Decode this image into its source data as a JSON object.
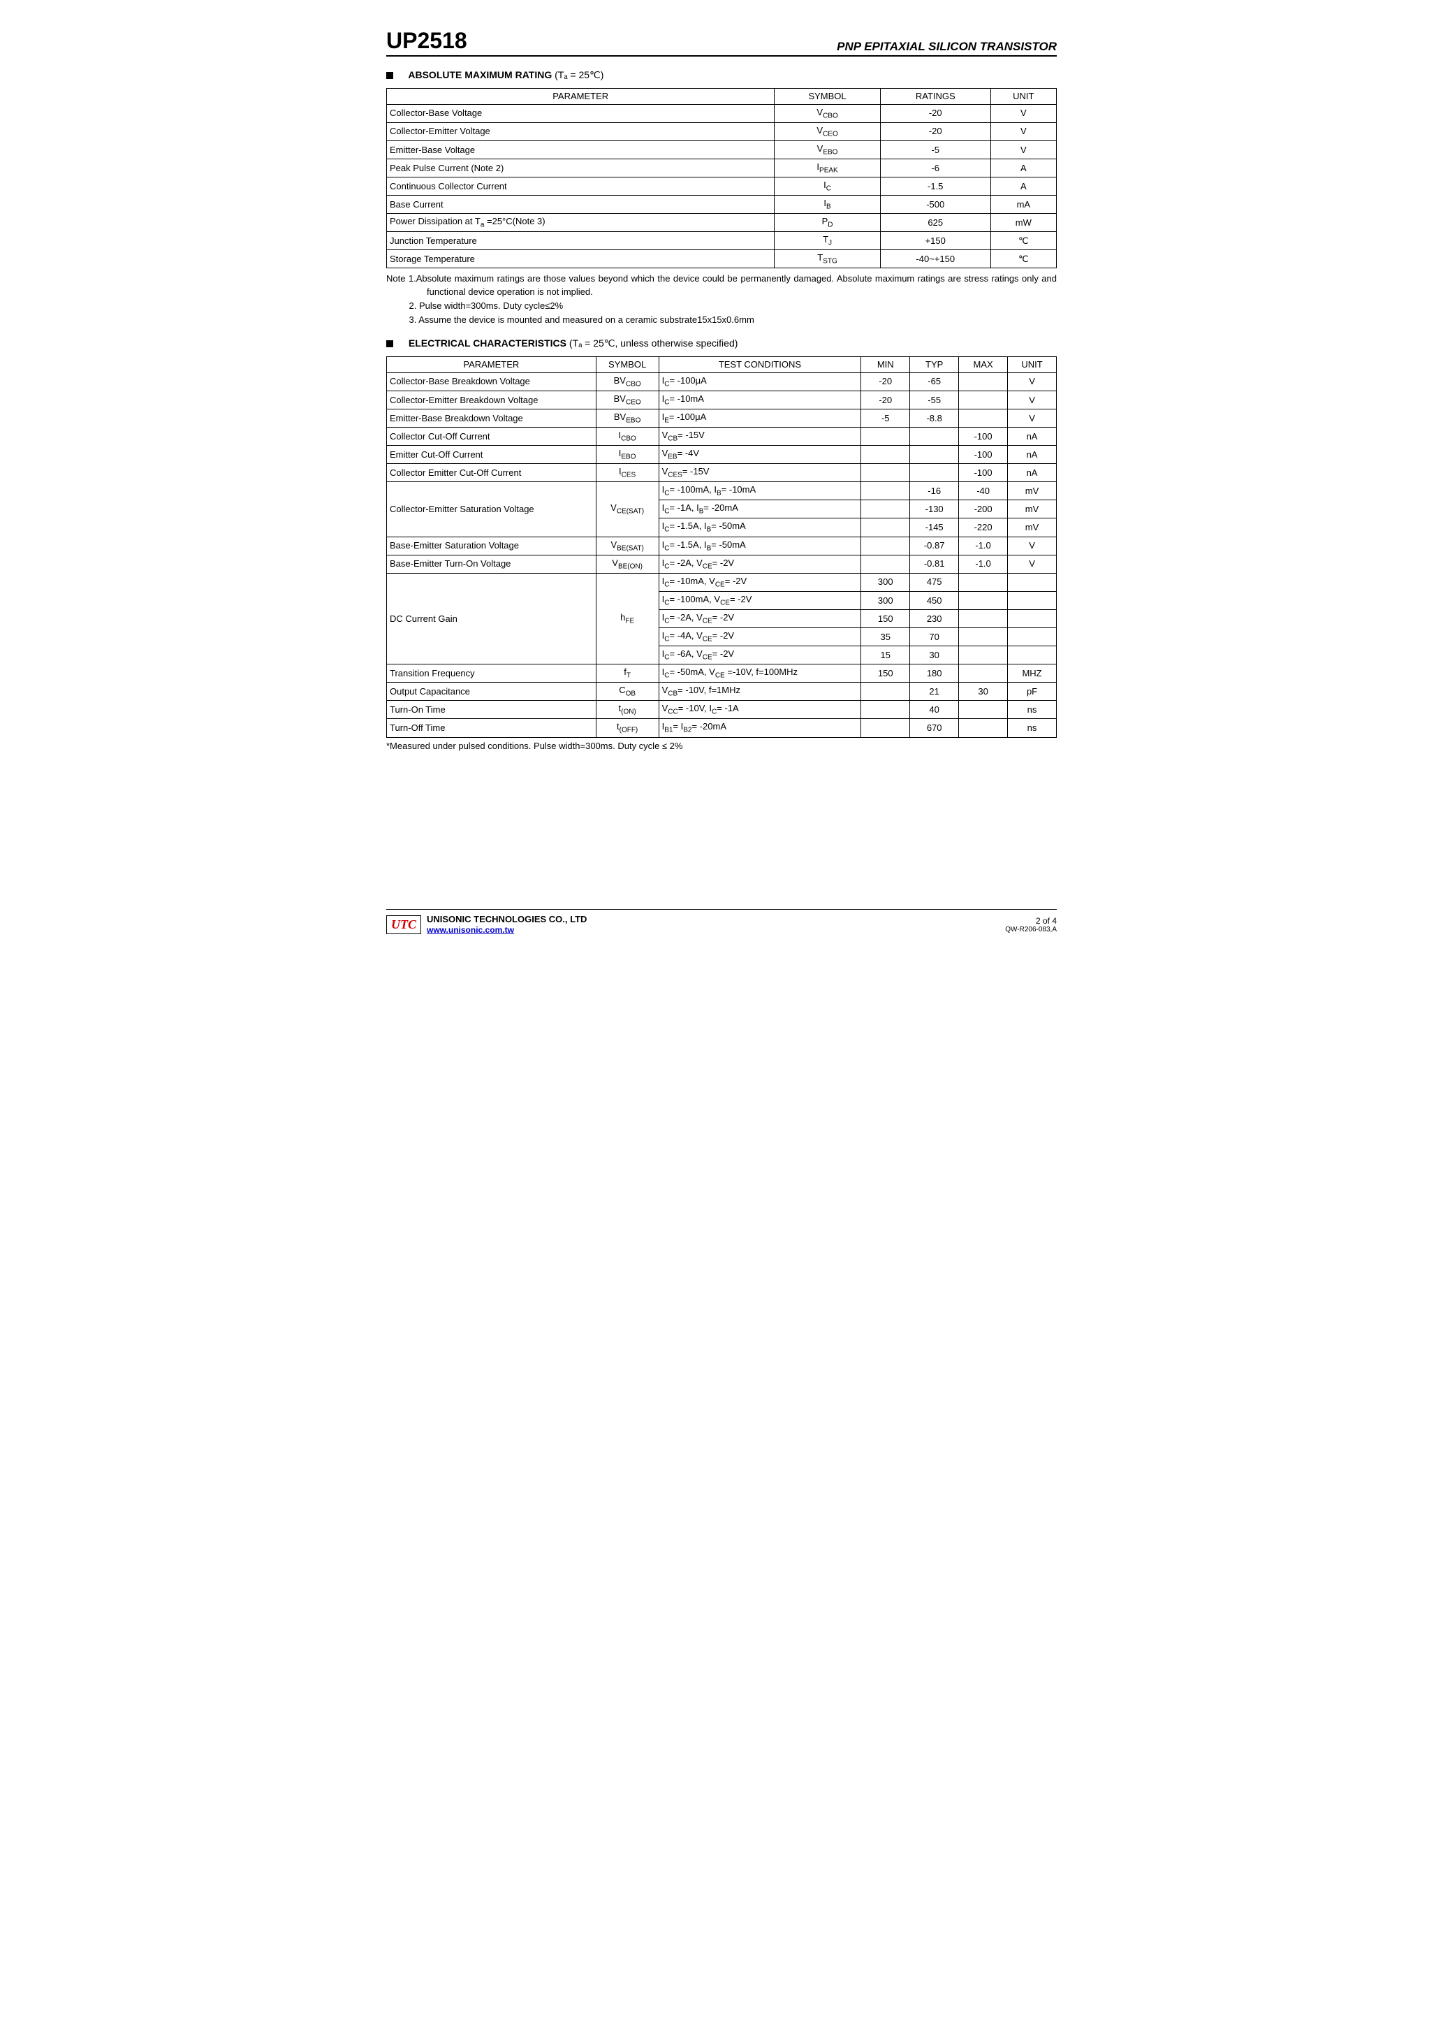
{
  "header": {
    "part_number": "UP2518",
    "subtitle": "PNP EPITAXIAL SILICON TRANSISTOR"
  },
  "sections": {
    "abs_max": {
      "title": "ABSOLUTE MAXIMUM RATING",
      "condition": "(Tₐ = 25℃)",
      "columns": [
        "PARAMETER",
        "SYMBOL",
        "RATINGS",
        "UNIT"
      ],
      "rows": [
        {
          "param": "Collector-Base Voltage",
          "symbol": "V<sub>CBO</sub>",
          "rating": "-20",
          "unit": "V"
        },
        {
          "param": "Collector-Emitter Voltage",
          "symbol": "V<sub>CEO</sub>",
          "rating": "-20",
          "unit": "V"
        },
        {
          "param": "Emitter-Base Voltage",
          "symbol": "V<sub>EBO</sub>",
          "rating": "-5",
          "unit": "V"
        },
        {
          "param": "Peak Pulse Current (Note 2)",
          "symbol": "I<sub>PEAK</sub>",
          "rating": "-6",
          "unit": "A"
        },
        {
          "param": "Continuous Collector Current",
          "symbol": "I<sub>C</sub>",
          "rating": "-1.5",
          "unit": "A"
        },
        {
          "param": "Base Current",
          "symbol": "I<sub>B</sub>",
          "rating": "-500",
          "unit": "mA"
        },
        {
          "param": "Power Dissipation at T<sub>a</sub> =25°C(Note 3)",
          "symbol": "P<sub>D</sub>",
          "rating": "625",
          "unit": "mW"
        },
        {
          "param": "Junction Temperature",
          "symbol": "T<sub>J</sub>",
          "rating": "+150",
          "unit": "℃"
        },
        {
          "param": "Storage Temperature",
          "symbol": "T<sub>STG</sub>",
          "rating": "-40~+150",
          "unit": "℃"
        }
      ],
      "notes": [
        "Note   1.Absolute maximum ratings are those values beyond which the device could be permanently damaged. Absolute maximum ratings are stress ratings only and functional device operation is not implied.",
        "2. Pulse width=300ms. Duty cycle≤2%",
        "3. Assume the device is mounted and measured on a ceramic substrate15x15x0.6mm"
      ]
    },
    "elec": {
      "title": "ELECTRICAL CHARACTERISTICS",
      "condition": "(Tₐ = 25℃, unless otherwise specified)",
      "columns": [
        "PARAMETER",
        "SYMBOL",
        "TEST CONDITIONS",
        "MIN",
        "TYP",
        "MAX",
        "UNIT"
      ],
      "rows": [
        {
          "param": "Collector-Base Breakdown Voltage",
          "symbol": "BV<sub>CBO</sub>",
          "cond": "I<sub>C</sub>= -100μA",
          "min": "-20",
          "typ": "-65",
          "max": "",
          "unit": "V"
        },
        {
          "param": "Collector-Emitter Breakdown Voltage",
          "symbol": "BV<sub>CEO</sub>",
          "cond": "I<sub>C</sub>= -10mA",
          "min": "-20",
          "typ": "-55",
          "max": "",
          "unit": "V"
        },
        {
          "param": "Emitter-Base Breakdown Voltage",
          "symbol": "BV<sub>EBO</sub>",
          "cond": "I<sub>E</sub>= -100μA",
          "min": "-5",
          "typ": "-8.8",
          "max": "",
          "unit": "V"
        },
        {
          "param": "Collector Cut-Off Current",
          "symbol": "I<sub>CBO</sub>",
          "cond": "V<sub>CB</sub>= -15V",
          "min": "",
          "typ": "",
          "max": "-100",
          "unit": "nA"
        },
        {
          "param": "Emitter Cut-Off Current",
          "symbol": "I<sub>EBO</sub>",
          "cond": "V<sub>EB</sub>= -4V",
          "min": "",
          "typ": "",
          "max": "-100",
          "unit": "nA"
        },
        {
          "param": "Collector Emitter Cut-Off Current",
          "symbol": "I<sub>CES</sub>",
          "cond": "V<sub>CES</sub>= -15V",
          "min": "",
          "typ": "",
          "max": "-100",
          "unit": "nA"
        },
        {
          "param": "Collector-Emitter Saturation Voltage",
          "symbol": "V<sub>CE(SAT)</sub>",
          "rowspan": 3,
          "sub": [
            {
              "cond": "I<sub>C</sub>= -100mA, I<sub>B</sub>= -10mA",
              "min": "",
              "typ": "-16",
              "max": "-40",
              "unit": "mV"
            },
            {
              "cond": "I<sub>C</sub>= -1A, I<sub>B</sub>= -20mA",
              "min": "",
              "typ": "-130",
              "max": "-200",
              "unit": "mV"
            },
            {
              "cond": "I<sub>C</sub>= -1.5A, I<sub>B</sub>= -50mA",
              "min": "",
              "typ": "-145",
              "max": "-220",
              "unit": "mV"
            }
          ]
        },
        {
          "param": "Base-Emitter Saturation Voltage",
          "symbol": "V<sub>BE(SAT)</sub>",
          "cond": "I<sub>C</sub>= -1.5A, I<sub>B</sub>= -50mA",
          "min": "",
          "typ": "-0.87",
          "max": "-1.0",
          "unit": "V"
        },
        {
          "param": "Base-Emitter Turn-On Voltage",
          "symbol": "V<sub>BE(ON)</sub>",
          "cond": "I<sub>C</sub>= -2A, V<sub>CE</sub>= -2V",
          "min": "",
          "typ": "-0.81",
          "max": "-1.0",
          "unit": "V"
        },
        {
          "param": "DC Current Gain",
          "symbol": "h<sub>FE</sub>",
          "rowspan": 5,
          "sub": [
            {
              "cond": "I<sub>C</sub>= -10mA, V<sub>CE</sub>= -2V",
              "min": "300",
              "typ": "475",
              "max": "",
              "unit": ""
            },
            {
              "cond": "I<sub>C</sub>= -100mA, V<sub>CE</sub>= -2V",
              "min": "300",
              "typ": "450",
              "max": "",
              "unit": ""
            },
            {
              "cond": "I<sub>C</sub>= -2A, V<sub>CE</sub>= -2V",
              "min": "150",
              "typ": "230",
              "max": "",
              "unit": ""
            },
            {
              "cond": "I<sub>C</sub>= -4A, V<sub>CE</sub>= -2V",
              "min": "35",
              "typ": "70",
              "max": "",
              "unit": ""
            },
            {
              "cond": "I<sub>C</sub>= -6A, V<sub>CE</sub>= -2V",
              "min": "15",
              "typ": "30",
              "max": "",
              "unit": ""
            }
          ]
        },
        {
          "param": "Transition Frequency",
          "symbol": "f<sub>T</sub>",
          "cond": "I<sub>C</sub>= -50mA, V<sub>CE</sub> =-10V, f=100MHz",
          "min": "150",
          "typ": "180",
          "max": "",
          "unit": "MHZ"
        },
        {
          "param": "Output Capacitance",
          "symbol": "C<sub>OB</sub>",
          "cond": "V<sub>CB</sub>= -10V, f=1MHz",
          "min": "",
          "typ": "21",
          "max": "30",
          "unit": "pF"
        },
        {
          "param": "Turn-On Time",
          "symbol": "t<sub>(ON)</sub>",
          "cond": "V<sub>CC</sub>= -10V, I<sub>C</sub>= -1A",
          "min": "",
          "typ": "40",
          "max": "",
          "unit": "ns"
        },
        {
          "param": "Turn-Off Time",
          "symbol": "t<sub>(OFF)</sub>",
          "cond": "I<sub>B1</sub>= I<sub>B2</sub>= -20mA",
          "min": "",
          "typ": "670",
          "max": "",
          "unit": "ns"
        }
      ],
      "footnote": "*Measured under pulsed conditions. Pulse width=300ms. Duty cycle ≤ 2%"
    }
  },
  "footer": {
    "logo": "UTC",
    "company": "UNISONIC TECHNOLOGIES CO., LTD",
    "url": "www.unisonic.com.tw",
    "page": "2 of 4",
    "code": "QW-R206-083,A"
  },
  "col_widths": {
    "abs": {
      "param": "46%",
      "symbol": "9%",
      "rating": "31%",
      "unit": "14%"
    },
    "elec": {
      "param": "30%",
      "symbol": "8%",
      "cond": "30%",
      "min": "7%",
      "typ": "7%",
      "max": "7%",
      "unit": "7%"
    }
  }
}
